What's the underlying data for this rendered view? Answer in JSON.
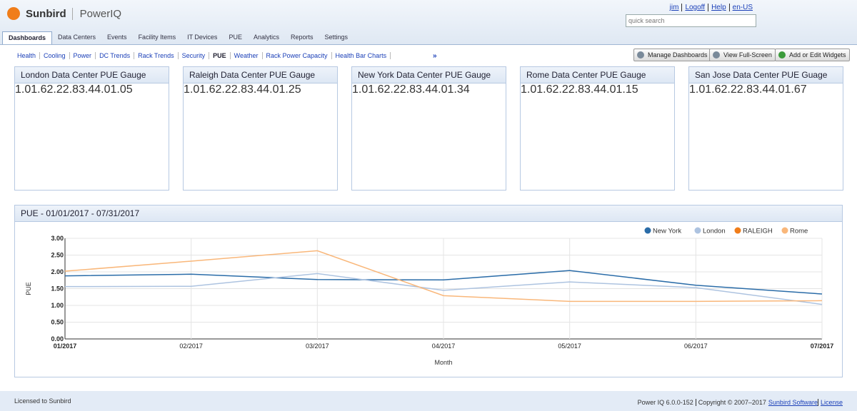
{
  "header": {
    "logo": "Sunbird",
    "product": "PowerIQ",
    "user_links": [
      "jim",
      "Logoff",
      "Help",
      "en-US"
    ],
    "search_placeholder": "quick search"
  },
  "tabs": [
    "Dashboards",
    "Data Centers",
    "Events",
    "Facility Items",
    "IT Devices",
    "PUE",
    "Analytics",
    "Reports",
    "Settings"
  ],
  "active_tab": 0,
  "subnav": [
    "Health",
    "Cooling",
    "Power",
    "DC Trends",
    "Rack Trends",
    "Security",
    "PUE",
    "Weather",
    "Rack Power Capacity",
    "Health Bar Charts"
  ],
  "subnav_active": 6,
  "subnav_more": "»",
  "buttons": [
    "Manage Dashboards",
    "View Full-Screen",
    "Add or Edit Widgets"
  ],
  "gauges": {
    "min": 1,
    "max": 4,
    "ticks": [
      {
        "value": 1,
        "label": "1.0"
      },
      {
        "value": 1.6,
        "label": "1.6"
      },
      {
        "value": 2.2,
        "label": "2.2"
      },
      {
        "value": 2.8,
        "label": "2.8"
      },
      {
        "value": 3.4,
        "label": "3.4"
      },
      {
        "value": 4,
        "label": "4.0"
      }
    ],
    "bands": [
      {
        "from": 1,
        "to": 2,
        "color": "#5cb85c"
      },
      {
        "from": 2,
        "to": 3,
        "color": "#fbfb6e"
      },
      {
        "from": 3,
        "to": 4,
        "color": "#e05a5a"
      }
    ],
    "needle_color": "#2c4f7c",
    "panels": [
      {
        "title": "London Data Center PUE Gauge",
        "value": 1.05
      },
      {
        "title": "Raleigh Data Center PUE Gauge",
        "value": 1.25
      },
      {
        "title": "New York Data Center PUE Gauge",
        "value": 1.34
      },
      {
        "title": "Rome Data Center PUE Gauge",
        "value": 1.15
      },
      {
        "title": "San Jose Data Center PUE Guage",
        "value": 1.67
      }
    ]
  },
  "chart_data": {
    "type": "line",
    "title": "PUE - 01/01/2017 - 07/31/2017",
    "x_label": "Month",
    "y_label": "PUE",
    "categories": [
      "01/2017",
      "02/2017",
      "03/2017",
      "04/2017",
      "05/2017",
      "06/2017",
      "07/2017"
    ],
    "series": [
      {
        "name": "New York",
        "color": "#2a6ca8",
        "values": [
          1.88,
          1.93,
          1.77,
          1.76,
          2.04,
          1.6,
          1.34
        ]
      },
      {
        "name": "London",
        "color": "#adc3e0",
        "values": [
          1.56,
          1.57,
          1.95,
          1.45,
          1.7,
          1.53,
          1.03
        ]
      },
      {
        "name": "RALEIGH",
        "color": "#f07d1a",
        "values": [
          null,
          null,
          null,
          null,
          null,
          null,
          null
        ]
      },
      {
        "name": "Rome",
        "color": "#f9b77a",
        "values": [
          2.02,
          2.32,
          2.63,
          1.29,
          1.12,
          1.12,
          1.14
        ]
      }
    ],
    "ylim": [
      0,
      3
    ],
    "yticks": [
      {
        "value": 0,
        "label": "0.00"
      },
      {
        "value": 0.5,
        "label": "0.50"
      },
      {
        "value": 1,
        "label": "1.00"
      },
      {
        "value": 1.5,
        "label": "1.50"
      },
      {
        "value": 2,
        "label": "2.00"
      },
      {
        "value": 2.5,
        "label": "2.50"
      },
      {
        "value": 3,
        "label": "3.00"
      }
    ],
    "grid": true,
    "legend": "top-right"
  },
  "footer": {
    "license": "Licensed to Sunbird",
    "version": "Power IQ 6.0.0-152",
    "copyright": "Copyright © 2007–2017",
    "company": "Sunbird Software",
    "license_link": "License"
  }
}
